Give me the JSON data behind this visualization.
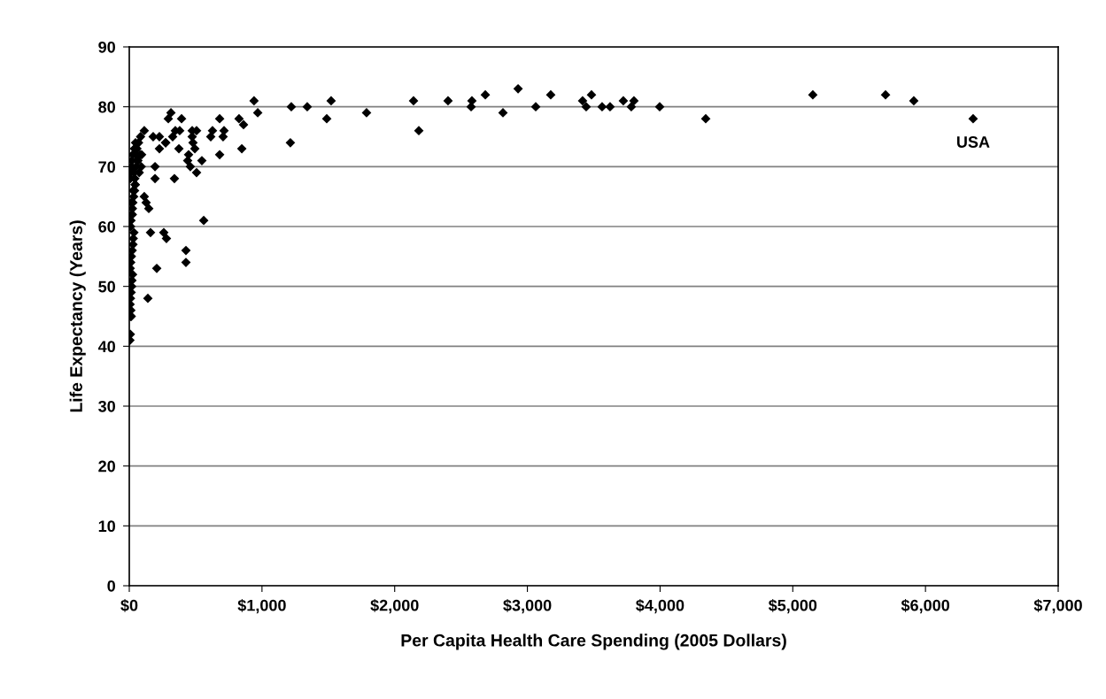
{
  "chart_data": {
    "type": "scatter",
    "xlabel": "Per Capita Health Care Spending (2005 Dollars)",
    "ylabel": "Life Expectancy (Years)",
    "x": [
      5,
      8,
      10,
      12,
      15,
      6,
      9,
      14,
      18,
      20,
      25,
      7,
      11,
      16,
      22,
      28,
      30,
      35,
      10,
      13,
      19,
      24,
      27,
      33,
      40,
      45,
      8,
      12,
      17,
      21,
      26,
      38,
      42,
      50,
      60,
      15,
      23,
      29,
      36,
      44,
      52,
      58,
      65,
      70,
      75,
      80,
      85,
      90,
      93,
      113,
      127,
      147,
      160,
      194,
      194,
      207,
      227,
      260,
      274,
      280,
      47,
      113,
      140,
      180,
      227,
      274,
      294,
      314,
      327,
      340,
      347,
      394,
      380,
      374,
      427,
      427,
      440,
      447,
      460,
      474,
      474,
      480,
      494,
      507,
      507,
      547,
      561,
      614,
      627,
      681,
      681,
      707,
      714,
      827,
      848,
      861,
      940,
      968,
      1214,
      1221,
      1341,
      1488,
      1521,
      1788,
      2142,
      2182,
      2402,
      2576,
      2582,
      2683,
      2816,
      2930,
      3063,
      3176,
      3416,
      3443,
      3483,
      3563,
      3623,
      3723,
      3783,
      3803,
      3997,
      4344,
      5151,
      5699,
      5912,
      6359
    ],
    "values": [
      41,
      42,
      45,
      46,
      45,
      47,
      48,
      49,
      50,
      51,
      52,
      53,
      54,
      55,
      56,
      57,
      58,
      59,
      60,
      61,
      62,
      63,
      64,
      65,
      66,
      67,
      68,
      69,
      70,
      71,
      72,
      73,
      68,
      72,
      71,
      64,
      62,
      66,
      69,
      67,
      70,
      73,
      71,
      74,
      69,
      72,
      75,
      70,
      72,
      65,
      64,
      63,
      59,
      70,
      68,
      53,
      73,
      59,
      74,
      58,
      74,
      76,
      48,
      75,
      75,
      74,
      78,
      79,
      75,
      68,
      76,
      78,
      76,
      73,
      56,
      54,
      71,
      72,
      70,
      76,
      75,
      74,
      73,
      76,
      69,
      71,
      61,
      75,
      76,
      78,
      72,
      75,
      76,
      78,
      73,
      77,
      81,
      79,
      74,
      80,
      80,
      78,
      81,
      79,
      81,
      76,
      81,
      80,
      81,
      82,
      79,
      83,
      80,
      82,
      81,
      80,
      82,
      80,
      80,
      81,
      80,
      81,
      80,
      78,
      82,
      82,
      81,
      78
    ],
    "color": "#000000",
    "marker": "diamond",
    "xlim": [
      0,
      7000
    ],
    "xticks": [
      {
        "value": 0,
        "label": "$0"
      },
      {
        "value": 1000,
        "label": "$1,000"
      },
      {
        "value": 2000,
        "label": "$2,000"
      },
      {
        "value": 3000,
        "label": "$3,000"
      },
      {
        "value": 4000,
        "label": "$4,000"
      },
      {
        "value": 5000,
        "label": "$5,000"
      },
      {
        "value": 6000,
        "label": "$6,000"
      },
      {
        "value": 7000,
        "label": "$7,000"
      }
    ],
    "ylim": [
      0,
      90
    ],
    "yticks": [
      0,
      10,
      20,
      30,
      40,
      50,
      60,
      70,
      80,
      90
    ],
    "grid": "y",
    "annotations": [
      {
        "text": "USA",
        "x": 6359,
        "y": 78
      }
    ]
  }
}
